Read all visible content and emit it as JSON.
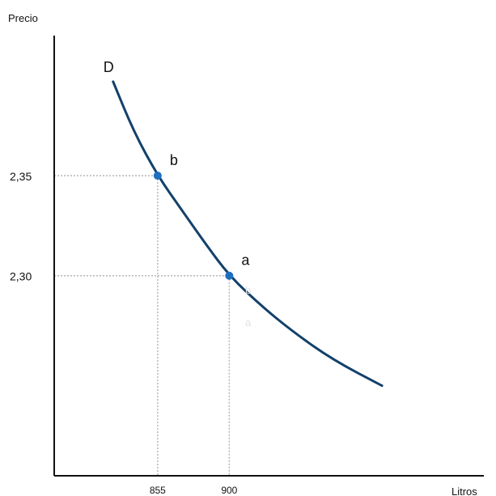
{
  "chart_data": {
    "type": "line",
    "title": "",
    "ylabel": "Precio",
    "xlabel": "Litros",
    "xlim": [
      790,
      1060
    ],
    "ylim": [
      2.2,
      2.42
    ],
    "grid": false,
    "legend": "none",
    "x_ticks": [
      855,
      900
    ],
    "x_tick_labels": [
      "855",
      "900"
    ],
    "y_ticks": [
      2.35,
      2.3
    ],
    "y_tick_labels": [
      "2,35",
      "2,30"
    ],
    "series": [
      {
        "name": "D",
        "x": [
          827,
          840,
          855,
          870,
          885,
          900,
          920,
          940,
          965,
          996
        ],
        "y": [
          2.397,
          2.372,
          2.35,
          2.333,
          2.316,
          2.3,
          2.285,
          2.272,
          2.258,
          2.245
        ]
      }
    ],
    "points": [
      {
        "label": "b",
        "x": 855,
        "y": 2.35
      },
      {
        "label": "a",
        "x": 900,
        "y": 2.3
      }
    ],
    "faint_labels": [
      "b",
      "a"
    ],
    "colors": {
      "curve": "#12416b",
      "points": "#1f6fc0",
      "guides": "#b5b5b5",
      "axes": "#111111"
    }
  }
}
